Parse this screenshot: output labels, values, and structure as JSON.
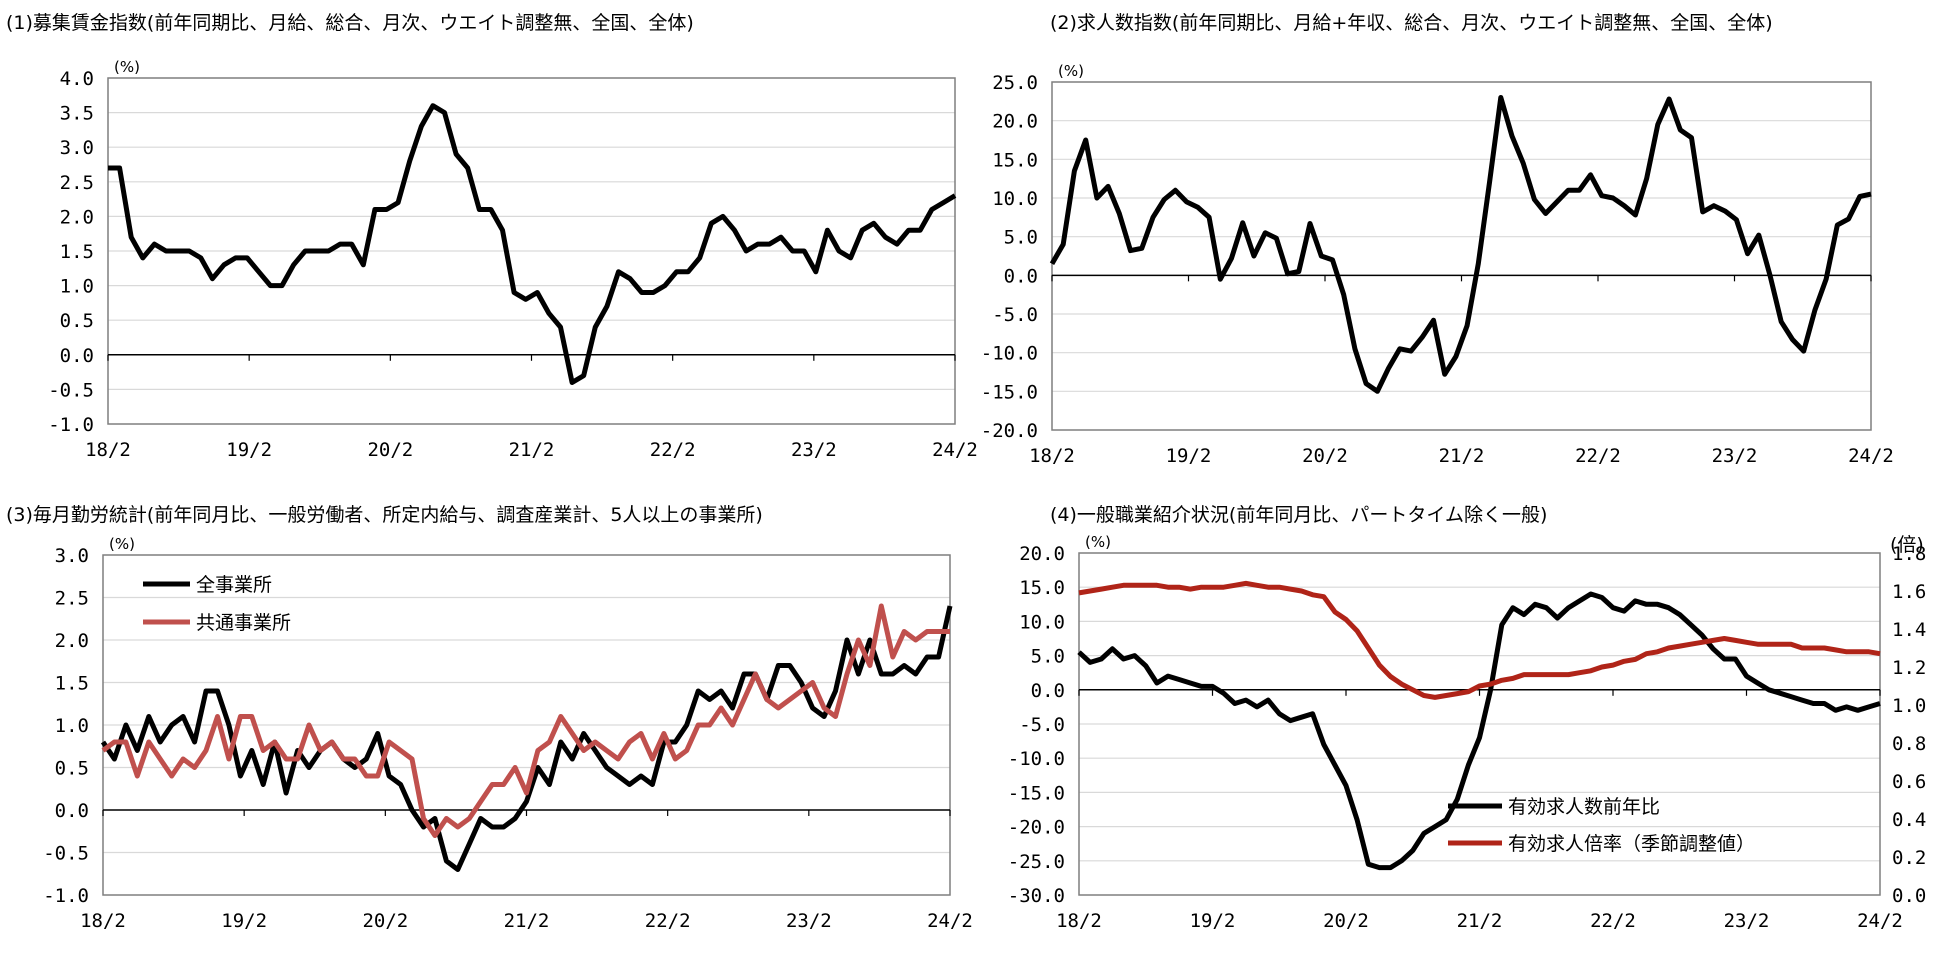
{
  "colors": {
    "black_series": "#000000",
    "red_series": "#c0504d",
    "red_series_dark": "#b02418",
    "grid": "#d9d9d9",
    "frame": "#7f7f7f"
  },
  "chart_data": [
    {
      "type": "line",
      "title": "(1)募集賃金指数(前年同期比、月給、総合、月次、ウエイト調整無、全国、全体)",
      "unit_label": "(%)",
      "x_ticks": [
        "18/2",
        "19/2",
        "20/2",
        "21/2",
        "22/2",
        "23/2",
        "24/2"
      ],
      "ylim": [
        -1.0,
        4.0
      ],
      "y_ticks": [
        "4.0",
        "3.5",
        "3.0",
        "2.5",
        "2.0",
        "1.5",
        "1.0",
        "0.5",
        "0.0",
        "-0.5",
        "-1.0"
      ],
      "grid": true,
      "series": [
        {
          "values": [
            2.7,
            2.7,
            1.7,
            1.4,
            1.6,
            1.5,
            1.5,
            1.5,
            1.4,
            1.1,
            1.3,
            1.4,
            1.4,
            1.2,
            1.0,
            1.0,
            1.3,
            1.5,
            1.5,
            1.5,
            1.6,
            1.6,
            1.3,
            2.1,
            2.1,
            2.2,
            2.8,
            3.3,
            3.6,
            3.5,
            2.9,
            2.7,
            2.1,
            2.1,
            1.8,
            0.9,
            0.8,
            0.9,
            0.6,
            0.4,
            -0.4,
            -0.3,
            0.4,
            0.7,
            1.2,
            1.1,
            0.9,
            0.9,
            1.0,
            1.2,
            1.2,
            1.4,
            1.9,
            2.0,
            1.8,
            1.5,
            1.6,
            1.6,
            1.7,
            1.5,
            1.5,
            1.2,
            1.8,
            1.5,
            1.4,
            1.8,
            1.9,
            1.7,
            1.6,
            1.8,
            1.8,
            2.1,
            2.2,
            2.3
          ]
        }
      ]
    },
    {
      "type": "line",
      "title": "(2)求人数指数(前年同期比、月給+年収、総合、月次、ウエイト調整無、全国、全体)",
      "unit_label": "(%)",
      "x_ticks": [
        "18/2",
        "19/2",
        "20/2",
        "21/2",
        "22/2",
        "23/2",
        "24/2"
      ],
      "ylim": [
        -20.0,
        25.0
      ],
      "y_ticks": [
        "25.0",
        "20.0",
        "15.0",
        "10.0",
        "5.0",
        "0.0",
        "-5.0",
        "-10.0",
        "-15.0",
        "-20.0"
      ],
      "grid": true,
      "series": [
        {
          "values": [
            1.5,
            4,
            13.5,
            17.5,
            10,
            11.5,
            8,
            3.2,
            3.5,
            7.5,
            9.8,
            11,
            9.5,
            8.8,
            7.5,
            -0.5,
            2.2,
            6.8,
            2.5,
            5.5,
            4.8,
            0.2,
            0.5,
            6.7,
            2.5,
            2.0,
            -2.5,
            -9.5,
            -14,
            -15,
            -12,
            -9.5,
            -9.8,
            -8,
            -5.8,
            -12.8,
            -10.5,
            -6.5,
            1.5,
            12,
            23,
            18,
            14.5,
            9.8,
            8,
            9.5,
            11,
            11,
            13,
            10.3,
            10,
            9,
            7.8,
            12.5,
            19.5,
            22.8,
            18.8,
            17.8,
            8.2,
            9,
            8.3,
            7.2,
            2.8,
            5.2,
            0,
            -6,
            -8.3,
            -9.8,
            -4.5,
            -0.5,
            6.5,
            7.3,
            10.2,
            10.5
          ]
        }
      ]
    },
    {
      "type": "line",
      "title": "(3)毎月勤労統計(前年同月比、一般労働者、所定内給与、調査産業計、5人以上の事業所)",
      "unit_label": "(%)",
      "x_ticks": [
        "18/2",
        "19/2",
        "20/2",
        "21/2",
        "22/2",
        "23/2",
        "24/2"
      ],
      "ylim": [
        -1.0,
        3.0
      ],
      "y_ticks": [
        "3.0",
        "2.5",
        "2.0",
        "1.5",
        "1.0",
        "0.5",
        "0.0",
        "-0.5",
        "-1.0"
      ],
      "grid": true,
      "legend_position": "top-left",
      "series": [
        {
          "name": "全事業所",
          "values": [
            0.8,
            0.6,
            1.0,
            0.7,
            1.1,
            0.8,
            1.0,
            1.1,
            0.8,
            1.4,
            1.4,
            1.0,
            0.4,
            0.7,
            0.3,
            0.8,
            0.2,
            0.7,
            0.5,
            0.7,
            0.8,
            0.6,
            0.5,
            0.6,
            0.9,
            0.4,
            0.3,
            0.0,
            -0.2,
            -0.1,
            -0.6,
            -0.7,
            -0.4,
            -0.1,
            -0.2,
            -0.2,
            -0.1,
            0.1,
            0.5,
            0.3,
            0.8,
            0.6,
            0.9,
            0.7,
            0.5,
            0.4,
            0.3,
            0.4,
            0.3,
            0.8,
            0.8,
            1.0,
            1.4,
            1.3,
            1.4,
            1.2,
            1.6,
            1.6,
            1.3,
            1.7,
            1.7,
            1.5,
            1.2,
            1.1,
            1.4,
            2.0,
            1.6,
            2.0,
            1.6,
            1.6,
            1.7,
            1.6,
            1.8,
            1.8,
            2.4
          ]
        },
        {
          "name": "共通事業所",
          "values": [
            0.7,
            0.8,
            0.8,
            0.4,
            0.8,
            0.6,
            0.4,
            0.6,
            0.5,
            0.7,
            1.1,
            0.6,
            1.1,
            1.1,
            0.7,
            0.8,
            0.6,
            0.6,
            1.0,
            0.7,
            0.8,
            0.6,
            0.6,
            0.4,
            0.4,
            0.8,
            0.7,
            0.6,
            -0.1,
            -0.3,
            -0.1,
            -0.2,
            -0.1,
            0.1,
            0.3,
            0.3,
            0.5,
            0.2,
            0.7,
            0.8,
            1.1,
            0.9,
            0.7,
            0.8,
            0.7,
            0.6,
            0.8,
            0.9,
            0.6,
            0.9,
            0.6,
            0.7,
            1.0,
            1.0,
            1.2,
            1.0,
            1.3,
            1.6,
            1.3,
            1.2,
            1.3,
            1.4,
            1.5,
            1.2,
            1.1,
            1.6,
            2.0,
            1.7,
            2.4,
            1.8,
            2.1,
            2.0,
            2.1,
            2.1,
            2.1
          ]
        }
      ]
    },
    {
      "type": "line",
      "title": "(4)一般職業紹介状況(前年同月比、パートタイム除く一般)",
      "unit_label": "(%)",
      "unit_label_right": "(倍)",
      "x_ticks": [
        "18/2",
        "19/2",
        "20/2",
        "21/2",
        "22/2",
        "23/2",
        "24/2"
      ],
      "ylim": [
        -30.0,
        20.0
      ],
      "y_ticks": [
        "20.0",
        "15.0",
        "10.0",
        "5.0",
        "0.0",
        "-5.0",
        "-10.0",
        "-15.0",
        "-20.0",
        "-25.0",
        "-30.0"
      ],
      "y2lim": [
        0.0,
        1.8
      ],
      "y2_ticks": [
        "1.8",
        "1.6",
        "1.4",
        "1.2",
        "1.0",
        "0.8",
        "0.6",
        "0.4",
        "0.2",
        "0.0"
      ],
      "grid": true,
      "legend_position": "bottom-center",
      "series": [
        {
          "name": "有効求人数前年比",
          "axis": "left",
          "values": [
            5.5,
            4.0,
            4.5,
            6.0,
            4.5,
            5.0,
            3.5,
            1.0,
            2.0,
            1.5,
            1.0,
            0.5,
            0.5,
            -0.5,
            -2.0,
            -1.5,
            -2.5,
            -1.5,
            -3.5,
            -4.5,
            -4.0,
            -3.5,
            -8.0,
            -11.0,
            -14.0,
            -19.0,
            -25.5,
            -26.0,
            -26.0,
            -25.0,
            -23.5,
            -21.0,
            -20.0,
            -19.0,
            -16.0,
            -11.0,
            -7.0,
            0.0,
            9.5,
            12.0,
            11.0,
            12.5,
            12.0,
            10.5,
            12.0,
            13.0,
            14.0,
            13.5,
            12.0,
            11.5,
            13.0,
            12.5,
            12.5,
            12.0,
            11.0,
            9.5,
            8.0,
            6.0,
            4.5,
            4.5,
            2.0,
            1.0,
            0.0,
            -0.5,
            -1.0,
            -1.5,
            -2.0,
            -2.0,
            -3.0,
            -2.5,
            -3.0,
            -2.5,
            -2.0
          ]
        },
        {
          "name": "有効求人倍率（季節調整値）",
          "axis": "right",
          "values": [
            1.59,
            1.6,
            1.61,
            1.62,
            1.63,
            1.63,
            1.63,
            1.63,
            1.62,
            1.62,
            1.61,
            1.62,
            1.62,
            1.62,
            1.63,
            1.64,
            1.63,
            1.62,
            1.62,
            1.61,
            1.6,
            1.58,
            1.57,
            1.49,
            1.45,
            1.39,
            1.3,
            1.21,
            1.15,
            1.11,
            1.08,
            1.05,
            1.04,
            1.05,
            1.06,
            1.07,
            1.1,
            1.11,
            1.13,
            1.14,
            1.16,
            1.16,
            1.16,
            1.16,
            1.16,
            1.17,
            1.18,
            1.2,
            1.21,
            1.23,
            1.24,
            1.27,
            1.28,
            1.3,
            1.31,
            1.32,
            1.33,
            1.34,
            1.35,
            1.34,
            1.33,
            1.32,
            1.32,
            1.32,
            1.32,
            1.3,
            1.3,
            1.3,
            1.29,
            1.28,
            1.28,
            1.28,
            1.27
          ]
        }
      ]
    }
  ]
}
